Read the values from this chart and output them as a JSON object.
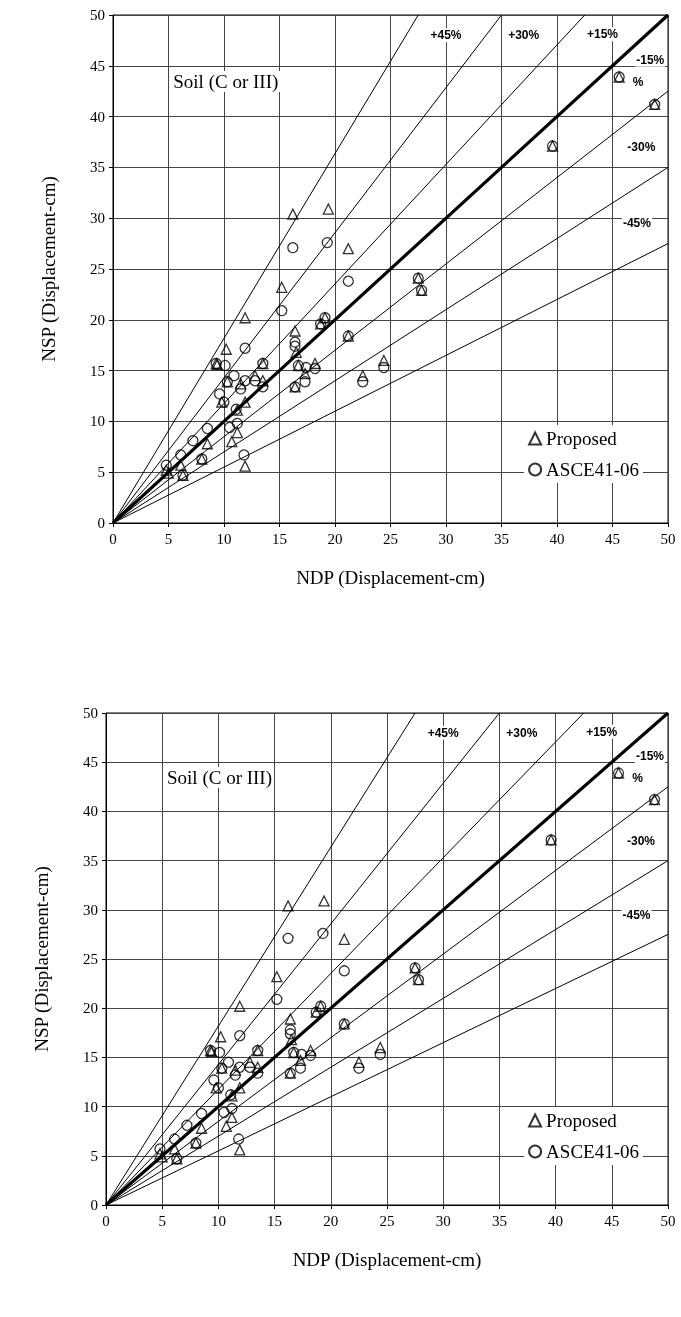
{
  "chart_data": [
    {
      "type": "scatter",
      "xlabel": "NDP (Displacement-cm)",
      "ylabel": "NSP (Displacement-cm)",
      "xlim": [
        0,
        50
      ],
      "ylim": [
        0,
        50
      ],
      "xticks": [
        0,
        5,
        10,
        15,
        20,
        25,
        30,
        35,
        40,
        45,
        50
      ],
      "yticks": [
        0,
        5,
        10,
        15,
        20,
        25,
        30,
        35,
        40,
        45,
        50
      ],
      "grid": true,
      "legend": "bottom right",
      "line_style": "solid",
      "series": [
        {
          "type": "line",
          "color": "#000000",
          "marker": "none",
          "x": [
            0,
            27.5
          ],
          "values": [
            0,
            50
          ]
        },
        {
          "type": "line",
          "color": "#000000",
          "marker": "none",
          "x": [
            0,
            35
          ],
          "values": [
            0,
            50
          ]
        },
        {
          "type": "line",
          "color": "#000000",
          "marker": "none",
          "x": [
            0,
            42.5
          ],
          "values": [
            0,
            50
          ]
        },
        {
          "type": "line",
          "color": "#000000",
          "marker": "none",
          "x": [
            0,
            50
          ],
          "values": [
            0,
            50
          ]
        },
        {
          "type": "line",
          "color": "#000000",
          "marker": "none",
          "x": [
            0,
            50
          ],
          "values": [
            0,
            42.5
          ]
        },
        {
          "type": "line",
          "color": "#000000",
          "marker": "none",
          "x": [
            0,
            50
          ],
          "values": [
            0,
            35
          ]
        },
        {
          "type": "line",
          "color": "#000000",
          "marker": "none",
          "x": [
            0,
            50
          ],
          "values": [
            0,
            27.5
          ]
        },
        {
          "type": "scatter",
          "name": "Proposed",
          "color": "#000000",
          "marker": "triangle",
          "x": [
            16.2,
            19.4,
            21.2,
            15.2,
            11.9,
            10.2,
            9.3,
            16.4,
            16.5,
            13.5,
            16.7,
            18.2,
            21.2,
            24.4,
            22.5,
            10.3,
            11.5,
            12.8,
            13.5,
            16.4,
            17.3,
            11.9,
            11.2,
            9.8,
            11.2,
            10.7,
            8.5,
            8.0,
            11.9,
            5.0,
            6.3,
            6.1,
            4.8,
            19.1,
            18.7,
            45.6,
            48.8,
            39.6,
            27.5,
            27.8,
            9.4
          ],
          "values": [
            30.4,
            30.9,
            27.0,
            23.2,
            20.2,
            17.1,
            15.7,
            18.9,
            16.8,
            15.7,
            15.5,
            15.7,
            18.4,
            16.0,
            14.5,
            13.9,
            13.7,
            14.5,
            14.0,
            13.4,
            14.7,
            11.9,
            11.1,
            11.9,
            8.9,
            8.0,
            7.8,
            6.3,
            5.6,
            4.9,
            4.7,
            5.7,
            5.2,
            20.2,
            19.6,
            43.9,
            41.2,
            37.1,
            24.1,
            22.9,
            15.6
          ]
        },
        {
          "type": "scatter",
          "name": "ASCE41-06",
          "color": "#000000",
          "marker": "circle",
          "x": [
            16.4,
            16.4,
            13.5,
            16.7,
            21.2,
            24.4,
            22.5,
            10.3,
            11.5,
            12.8,
            13.5,
            16.4,
            17.3,
            18.2,
            17.4,
            11.1,
            10.0,
            9.6,
            10.1,
            10.9,
            11.9,
            11.9,
            16.2,
            19.3,
            21.2,
            15.2,
            19.1,
            18.7,
            10.5,
            11.2,
            8.5,
            7.2,
            6.1,
            8.0,
            11.8,
            4.8,
            6.3,
            45.6,
            48.8,
            39.6,
            27.5,
            27.8,
            9.3
          ],
          "values": [
            17.8,
            17.4,
            15.7,
            15.5,
            18.4,
            15.3,
            13.9,
            13.9,
            13.2,
            14.0,
            13.4,
            13.4,
            13.9,
            15.2,
            15.3,
            11.2,
            11.9,
            12.7,
            15.5,
            14.5,
            14.0,
            17.2,
            27.1,
            27.6,
            23.8,
            20.9,
            20.2,
            19.6,
            9.4,
            9.8,
            9.3,
            8.1,
            6.7,
            6.3,
            6.7,
            5.7,
            4.7,
            43.9,
            41.2,
            37.1,
            24.1,
            22.9,
            15.7
          ]
        }
      ],
      "annotations": [
        "Soil (C or III)",
        "+45%",
        "+30%",
        "+15%",
        "-15%",
        "%",
        "-30%",
        "-45%"
      ]
    },
    {
      "type": "scatter",
      "xlabel": "NDP (Displacement-cm)",
      "ylabel": "NSP (Displacement-cm)",
      "xlim": [
        0,
        50
      ],
      "ylim": [
        0,
        50
      ],
      "xticks": [
        0,
        5,
        10,
        15,
        20,
        25,
        30,
        35,
        40,
        45,
        50
      ],
      "yticks": [
        0,
        5,
        10,
        15,
        20,
        25,
        30,
        35,
        40,
        45,
        50
      ],
      "grid": true,
      "legend": "bottom right",
      "line_style": "solid",
      "series": [
        {
          "type": "line",
          "color": "#000000",
          "marker": "none",
          "x": [
            0,
            27.5
          ],
          "values": [
            0,
            50
          ]
        },
        {
          "type": "line",
          "color": "#000000",
          "marker": "none",
          "x": [
            0,
            35
          ],
          "values": [
            0,
            50
          ]
        },
        {
          "type": "line",
          "color": "#000000",
          "marker": "none",
          "x": [
            0,
            42.5
          ],
          "values": [
            0,
            50
          ]
        },
        {
          "type": "line",
          "color": "#000000",
          "marker": "none",
          "x": [
            0,
            50
          ],
          "values": [
            0,
            50
          ]
        },
        {
          "type": "line",
          "color": "#000000",
          "marker": "none",
          "x": [
            0,
            50
          ],
          "values": [
            0,
            42.5
          ]
        },
        {
          "type": "line",
          "color": "#000000",
          "marker": "none",
          "x": [
            0,
            50
          ],
          "values": [
            0,
            35
          ]
        },
        {
          "type": "line",
          "color": "#000000",
          "marker": "none",
          "x": [
            0,
            50
          ],
          "values": [
            0,
            27.5
          ]
        },
        {
          "type": "scatter",
          "name": "Proposed",
          "color": "#000000",
          "marker": "triangle",
          "x": [
            16.2,
            19.4,
            21.2,
            15.2,
            11.9,
            10.2,
            9.3,
            16.4,
            16.5,
            13.5,
            16.7,
            18.2,
            21.2,
            24.4,
            22.5,
            10.3,
            11.5,
            12.8,
            13.5,
            16.4,
            17.3,
            11.9,
            11.2,
            9.8,
            11.2,
            10.7,
            8.5,
            8.0,
            11.9,
            5.0,
            6.3,
            6.1,
            4.8,
            19.1,
            18.7,
            45.6,
            48.8,
            39.6,
            27.5,
            27.8,
            9.4
          ],
          "values": [
            30.4,
            30.9,
            27.0,
            23.2,
            20.2,
            17.1,
            15.7,
            18.9,
            16.8,
            15.7,
            15.5,
            15.7,
            18.4,
            16.0,
            14.5,
            13.9,
            13.7,
            14.5,
            14.0,
            13.4,
            14.7,
            11.9,
            11.1,
            11.9,
            8.9,
            8.0,
            7.8,
            6.3,
            5.6,
            4.9,
            4.7,
            5.7,
            5.2,
            20.2,
            19.6,
            43.9,
            41.2,
            37.1,
            24.1,
            22.9,
            15.6
          ]
        },
        {
          "type": "scatter",
          "name": "ASCE41-06",
          "color": "#000000",
          "marker": "circle",
          "x": [
            16.4,
            16.4,
            13.5,
            16.7,
            21.2,
            24.4,
            22.5,
            10.3,
            11.5,
            12.8,
            13.5,
            16.4,
            17.3,
            18.2,
            17.4,
            11.1,
            10.0,
            9.6,
            10.1,
            10.9,
            11.9,
            11.9,
            16.2,
            19.3,
            21.2,
            15.2,
            19.1,
            18.7,
            10.5,
            11.2,
            8.5,
            7.2,
            6.1,
            8.0,
            11.8,
            4.8,
            6.3,
            45.6,
            48.8,
            39.6,
            27.5,
            27.8,
            9.3
          ],
          "values": [
            17.8,
            17.4,
            15.7,
            15.5,
            18.4,
            15.3,
            13.9,
            13.9,
            13.2,
            14.0,
            13.4,
            13.4,
            13.9,
            15.2,
            15.3,
            11.2,
            11.9,
            12.7,
            15.5,
            14.5,
            14.0,
            17.2,
            27.1,
            27.6,
            23.8,
            20.9,
            20.2,
            19.6,
            9.4,
            9.8,
            9.3,
            8.1,
            6.7,
            6.3,
            6.7,
            5.7,
            4.7,
            43.9,
            41.2,
            37.1,
            24.1,
            22.9,
            15.7
          ]
        }
      ],
      "annotations": [
        "Soil (C or III)",
        "+45%",
        "+30%",
        "+15%",
        "-15%",
        "%",
        "-30%",
        "-45%"
      ]
    }
  ]
}
